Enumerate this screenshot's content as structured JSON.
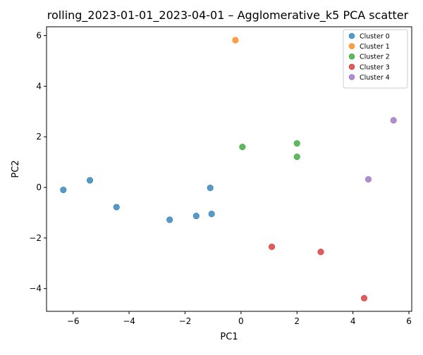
{
  "chart_data": {
    "type": "scatter",
    "title": "rolling_2023-01-01_2023-04-01 – Agglomerative_k5 PCA scatter",
    "xlabel": "PC1",
    "ylabel": "PC2",
    "xlim": [
      -6.95,
      6.1
    ],
    "ylim": [
      -4.9,
      6.35
    ],
    "xticks": [
      -6,
      -4,
      -2,
      0,
      2,
      4,
      6
    ],
    "xtick_labels": [
      "−6",
      "−4",
      "−2",
      "0",
      "2",
      "4",
      "6"
    ],
    "yticks": [
      -4,
      -2,
      0,
      2,
      4,
      6
    ],
    "ytick_labels": [
      "−4",
      "−2",
      "0",
      "2",
      "4",
      "6"
    ],
    "grid": false,
    "legend_position": "top-right",
    "series": [
      {
        "name": "Cluster 0",
        "color": "#1f77b4",
        "points": [
          [
            -6.35,
            -0.1
          ],
          [
            -5.4,
            0.28
          ],
          [
            -4.45,
            -0.78
          ],
          [
            -2.55,
            -1.28
          ],
          [
            -1.6,
            -1.13
          ],
          [
            -1.1,
            -0.02
          ],
          [
            -1.05,
            -1.05
          ]
        ]
      },
      {
        "name": "Cluster 1",
        "color": "#ff7f0e",
        "points": [
          [
            -0.2,
            5.82
          ]
        ]
      },
      {
        "name": "Cluster 2",
        "color": "#2ca02c",
        "points": [
          [
            0.05,
            1.6
          ],
          [
            2.0,
            1.74
          ],
          [
            2.0,
            1.21
          ]
        ]
      },
      {
        "name": "Cluster 3",
        "color": "#d62728",
        "points": [
          [
            1.1,
            -2.35
          ],
          [
            2.85,
            -2.55
          ],
          [
            4.4,
            -4.38
          ]
        ]
      },
      {
        "name": "Cluster 4",
        "color": "#9467bd",
        "points": [
          [
            4.55,
            0.32
          ],
          [
            5.45,
            2.65
          ]
        ]
      }
    ]
  }
}
